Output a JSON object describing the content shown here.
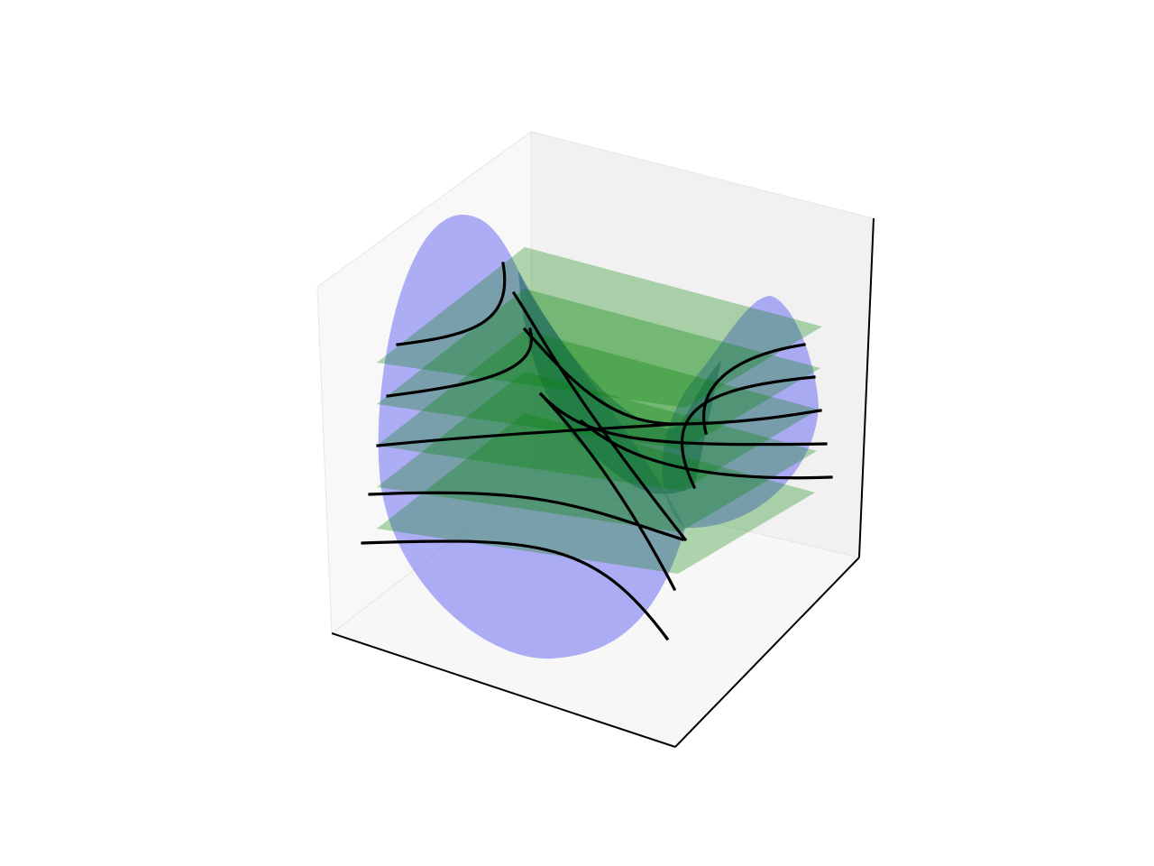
{
  "chart_data": {
    "type": "3d-surface",
    "title": "",
    "xlabel": "",
    "ylabel": "",
    "zlabel": "",
    "ticks_visible": false,
    "grid": false,
    "surface": {
      "name": "",
      "kind": "saddle (hyperbolic paraboloid)",
      "color": "#0000ff",
      "opacity": 0.3
    },
    "planes": {
      "name": "",
      "count": 5,
      "color": "#008000",
      "opacity": 0.3,
      "orientation": "horizontal"
    },
    "intersection_curves": {
      "name": "",
      "color": "#000000",
      "count_per_plane": 2
    },
    "pane_colors": {
      "left": "#f2f2f2",
      "right": "#ebebeb",
      "floor": "#f5f5f5",
      "edge": "#000000"
    }
  }
}
